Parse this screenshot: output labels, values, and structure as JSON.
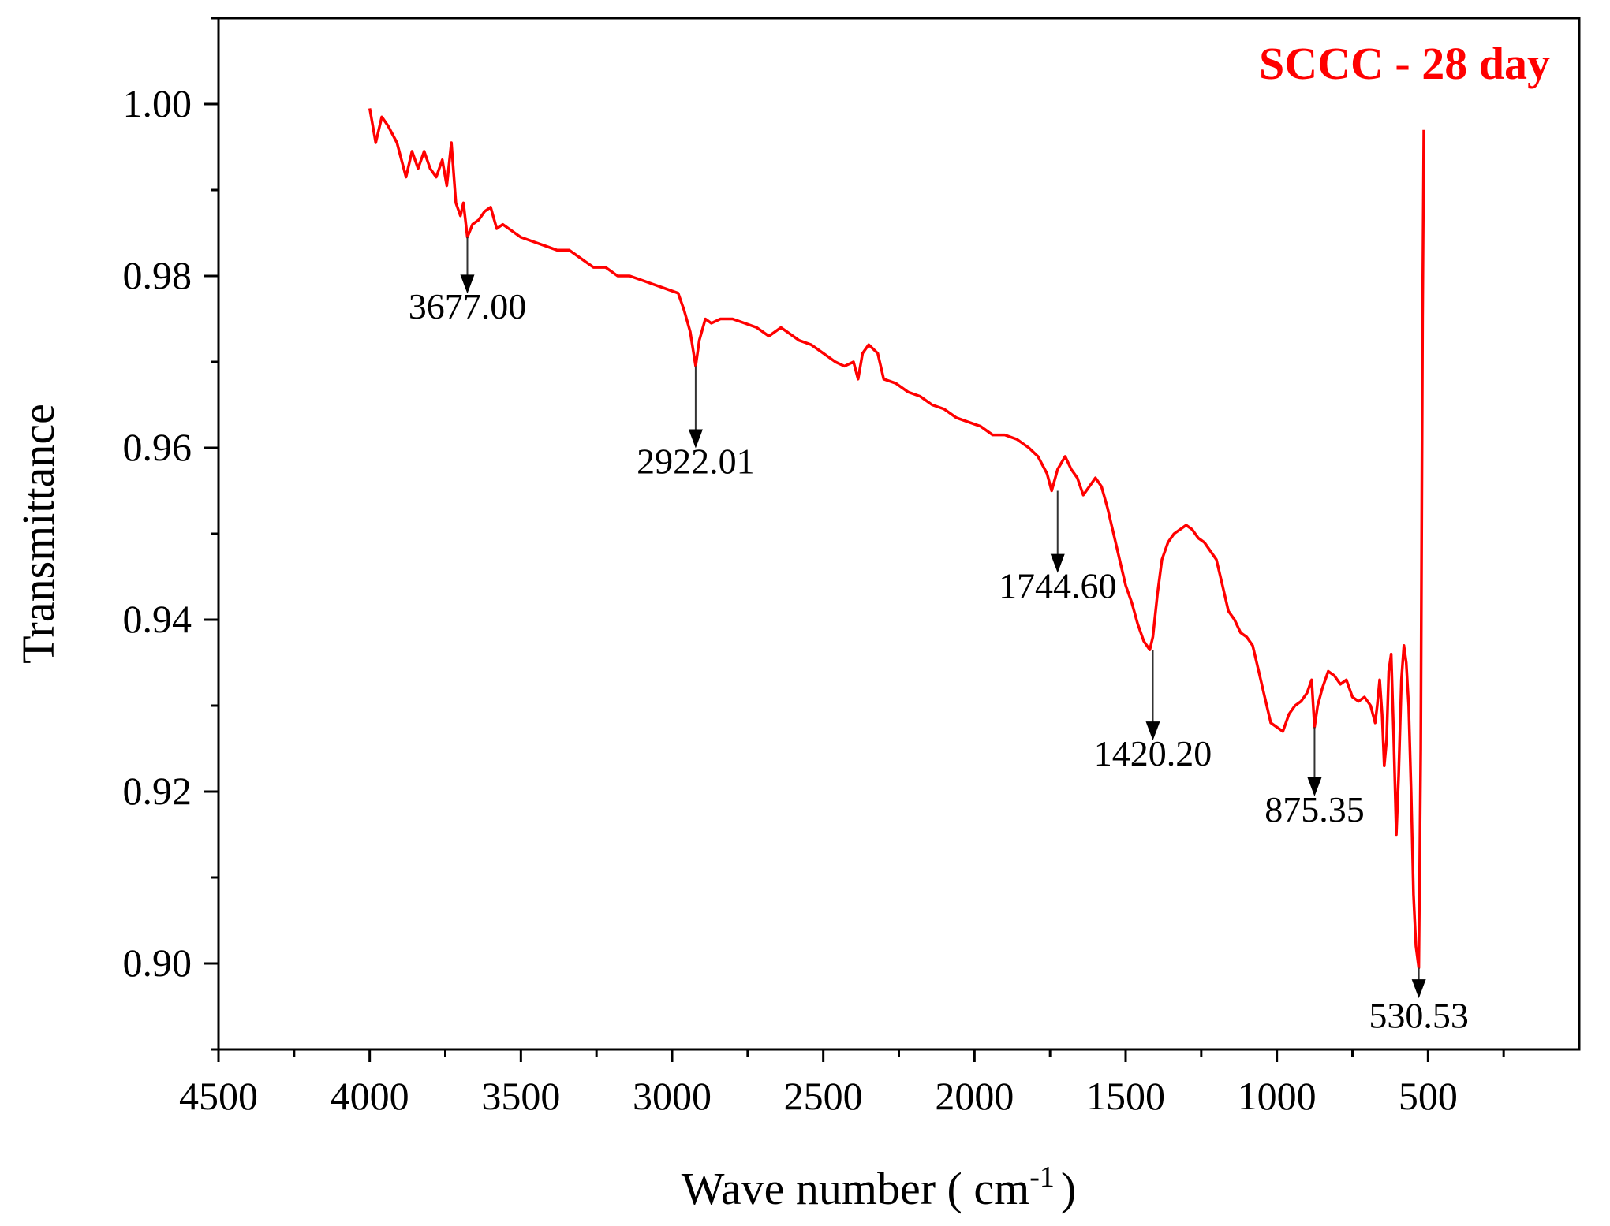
{
  "chart_data": {
    "type": "line",
    "title": "SCCC -  28 day",
    "title_color": "#ff0000",
    "series_color": "#ff0000",
    "xlabel": "Wave number ( cm",
    "xlabel_sup": "-1",
    "xlabel_suffix": ")",
    "ylabel": "Transmittance",
    "xlim": [
      4500,
      0
    ],
    "ylim": [
      0.89,
      1.01
    ],
    "x_ticks": [
      4500,
      4000,
      3500,
      3000,
      2500,
      2000,
      1500,
      1000,
      500
    ],
    "x_tick_labels": [
      "4500",
      "4000",
      "3500",
      "3000",
      "2500",
      "2000",
      "1500",
      "1000",
      "500"
    ],
    "y_ticks": [
      0.9,
      0.92,
      0.94,
      0.96,
      0.98,
      1.0
    ],
    "y_tick_labels": [
      "0.90",
      "0.92",
      "0.94",
      "0.96",
      "0.98",
      "1.00"
    ],
    "grid": false,
    "series": [
      {
        "name": "SCCC - 28 day",
        "points": [
          [
            4000,
            0.9995
          ],
          [
            3980,
            0.9955
          ],
          [
            3960,
            0.9985
          ],
          [
            3940,
            0.9975
          ],
          [
            3910,
            0.9955
          ],
          [
            3880,
            0.9915
          ],
          [
            3860,
            0.9945
          ],
          [
            3840,
            0.9925
          ],
          [
            3820,
            0.9945
          ],
          [
            3800,
            0.9925
          ],
          [
            3780,
            0.9915
          ],
          [
            3760,
            0.9935
          ],
          [
            3745,
            0.9905
          ],
          [
            3730,
            0.9955
          ],
          [
            3715,
            0.9885
          ],
          [
            3700,
            0.987
          ],
          [
            3690,
            0.9885
          ],
          [
            3677,
            0.9845
          ],
          [
            3660,
            0.986
          ],
          [
            3640,
            0.9865
          ],
          [
            3620,
            0.9875
          ],
          [
            3600,
            0.988
          ],
          [
            3580,
            0.9855
          ],
          [
            3560,
            0.986
          ],
          [
            3540,
            0.9855
          ],
          [
            3500,
            0.9845
          ],
          [
            3460,
            0.984
          ],
          [
            3420,
            0.9835
          ],
          [
            3380,
            0.983
          ],
          [
            3340,
            0.983
          ],
          [
            3300,
            0.982
          ],
          [
            3260,
            0.981
          ],
          [
            3220,
            0.981
          ],
          [
            3180,
            0.98
          ],
          [
            3140,
            0.98
          ],
          [
            3100,
            0.9795
          ],
          [
            3060,
            0.979
          ],
          [
            3020,
            0.9785
          ],
          [
            2980,
            0.978
          ],
          [
            2960,
            0.976
          ],
          [
            2940,
            0.9735
          ],
          [
            2922,
            0.9695
          ],
          [
            2910,
            0.9725
          ],
          [
            2890,
            0.975
          ],
          [
            2870,
            0.9745
          ],
          [
            2840,
            0.975
          ],
          [
            2800,
            0.975
          ],
          [
            2760,
            0.9745
          ],
          [
            2720,
            0.974
          ],
          [
            2680,
            0.973
          ],
          [
            2640,
            0.974
          ],
          [
            2620,
            0.9735
          ],
          [
            2580,
            0.9725
          ],
          [
            2540,
            0.972
          ],
          [
            2500,
            0.971
          ],
          [
            2460,
            0.97
          ],
          [
            2430,
            0.9695
          ],
          [
            2400,
            0.97
          ],
          [
            2385,
            0.968
          ],
          [
            2370,
            0.971
          ],
          [
            2350,
            0.972
          ],
          [
            2320,
            0.971
          ],
          [
            2300,
            0.968
          ],
          [
            2260,
            0.9675
          ],
          [
            2220,
            0.9665
          ],
          [
            2180,
            0.966
          ],
          [
            2140,
            0.965
          ],
          [
            2100,
            0.9645
          ],
          [
            2060,
            0.9635
          ],
          [
            2020,
            0.963
          ],
          [
            1980,
            0.9625
          ],
          [
            1940,
            0.9615
          ],
          [
            1900,
            0.9615
          ],
          [
            1860,
            0.961
          ],
          [
            1820,
            0.96
          ],
          [
            1790,
            0.959
          ],
          [
            1760,
            0.957
          ],
          [
            1744.6,
            0.955
          ],
          [
            1725,
            0.9575
          ],
          [
            1700,
            0.959
          ],
          [
            1680,
            0.9575
          ],
          [
            1660,
            0.9565
          ],
          [
            1640,
            0.9545
          ],
          [
            1620,
            0.9555
          ],
          [
            1600,
            0.9565
          ],
          [
            1580,
            0.9555
          ],
          [
            1560,
            0.953
          ],
          [
            1540,
            0.95
          ],
          [
            1520,
            0.947
          ],
          [
            1500,
            0.944
          ],
          [
            1480,
            0.942
          ],
          [
            1460,
            0.9395
          ],
          [
            1440,
            0.9375
          ],
          [
            1420.2,
            0.9365
          ],
          [
            1410,
            0.938
          ],
          [
            1395,
            0.943
          ],
          [
            1380,
            0.947
          ],
          [
            1360,
            0.949
          ],
          [
            1340,
            0.95
          ],
          [
            1320,
            0.9505
          ],
          [
            1300,
            0.951
          ],
          [
            1280,
            0.9505
          ],
          [
            1260,
            0.9495
          ],
          [
            1240,
            0.949
          ],
          [
            1220,
            0.948
          ],
          [
            1200,
            0.947
          ],
          [
            1180,
            0.944
          ],
          [
            1160,
            0.941
          ],
          [
            1140,
            0.94
          ],
          [
            1120,
            0.9385
          ],
          [
            1100,
            0.938
          ],
          [
            1080,
            0.937
          ],
          [
            1060,
            0.934
          ],
          [
            1040,
            0.931
          ],
          [
            1020,
            0.928
          ],
          [
            1000,
            0.9275
          ],
          [
            980,
            0.927
          ],
          [
            960,
            0.929
          ],
          [
            940,
            0.93
          ],
          [
            920,
            0.9305
          ],
          [
            900,
            0.9315
          ],
          [
            885,
            0.933
          ],
          [
            875.35,
            0.9275
          ],
          [
            865,
            0.93
          ],
          [
            850,
            0.932
          ],
          [
            830,
            0.934
          ],
          [
            810,
            0.9335
          ],
          [
            790,
            0.9325
          ],
          [
            770,
            0.933
          ],
          [
            750,
            0.931
          ],
          [
            730,
            0.9305
          ],
          [
            710,
            0.931
          ],
          [
            690,
            0.93
          ],
          [
            675,
            0.928
          ],
          [
            668,
            0.93
          ],
          [
            660,
            0.933
          ],
          [
            652,
            0.929
          ],
          [
            645,
            0.923
          ],
          [
            637,
            0.926
          ],
          [
            630,
            0.934
          ],
          [
            622,
            0.936
          ],
          [
            614,
            0.927
          ],
          [
            605,
            0.915
          ],
          [
            597,
            0.922
          ],
          [
            588,
            0.933
          ],
          [
            580,
            0.937
          ],
          [
            572,
            0.935
          ],
          [
            564,
            0.93
          ],
          [
            556,
            0.92
          ],
          [
            548,
            0.908
          ],
          [
            540,
            0.902
          ],
          [
            530.53,
            0.8995
          ],
          [
            524,
            0.925
          ],
          [
            518,
            0.975
          ],
          [
            514,
            0.997
          ]
        ]
      }
    ],
    "annotations": [
      {
        "text": "3677.00",
        "x": 3677,
        "y_from": 0.9845,
        "y_to": 0.9785,
        "label_y": 0.9765
      },
      {
        "text": "2922.01",
        "x": 2922,
        "y_from": 0.9695,
        "y_to": 0.9605,
        "label_y": 0.9585
      },
      {
        "text": "1744.60",
        "x": 1725,
        "y_from": 0.955,
        "y_to": 0.946,
        "label_y": 0.944
      },
      {
        "text": "1420.20",
        "x": 1410,
        "y_from": 0.9365,
        "y_to": 0.9265,
        "label_y": 0.9245
      },
      {
        "text": "875.35",
        "x": 875.35,
        "y_from": 0.9275,
        "y_to": 0.92,
        "label_y": 0.918
      },
      {
        "text": "530.53",
        "x": 530.53,
        "y_from": 0.8995,
        "y_to": 0.8965,
        "label_y": 0.894
      }
    ]
  }
}
